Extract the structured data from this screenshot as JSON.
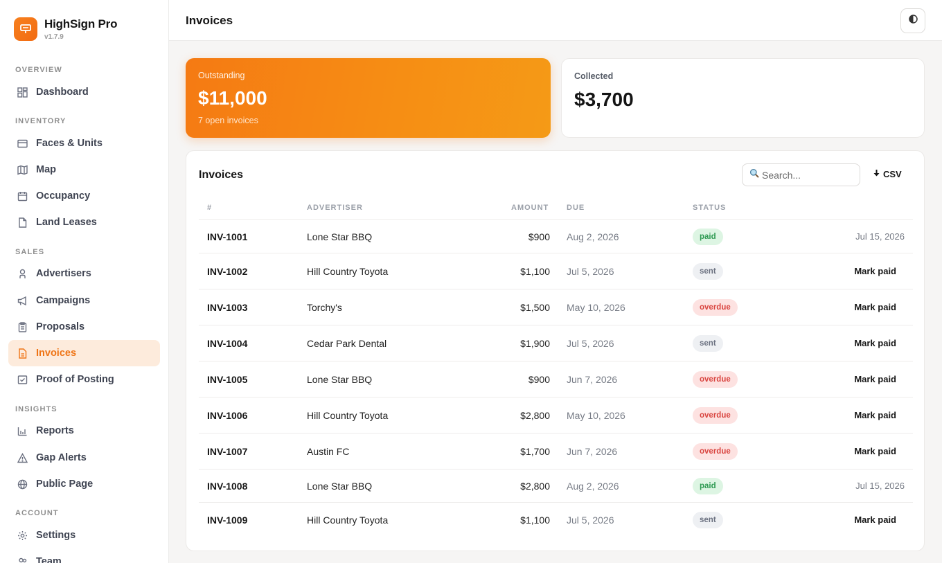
{
  "brand": {
    "name": "HighSign Pro",
    "version": "v1.7.9"
  },
  "nav": {
    "overview": "OVERVIEW",
    "dashboard": "Dashboard",
    "inventory": "INVENTORY",
    "faces_units": "Faces & Units",
    "map": "Map",
    "occupancy": "Occupancy",
    "land_leases": "Land Leases",
    "sales": "SALES",
    "advertisers": "Advertisers",
    "campaigns": "Campaigns",
    "proposals": "Proposals",
    "invoices": "Invoices",
    "proof_of_posting": "Proof of Posting",
    "insights": "INSIGHTS",
    "reports": "Reports",
    "gap_alerts": "Gap Alerts",
    "public_page": "Public Page",
    "account": "ACCOUNT",
    "settings": "Settings",
    "team": "Team"
  },
  "header": {
    "title": "Invoices",
    "theme_icon": "contrast-icon"
  },
  "stats": {
    "outstanding": {
      "label": "Outstanding",
      "value": "$11,000",
      "sub": "7 open invoices"
    },
    "collected": {
      "label": "Collected",
      "value": "$3,700"
    }
  },
  "panel": {
    "title": "Invoices",
    "search_placeholder": "Search...",
    "csv_label": "CSV",
    "columns": {
      "num": "#",
      "advertiser": "ADVERTISER",
      "amount": "AMOUNT",
      "due": "DUE",
      "status": "STATUS"
    }
  },
  "rows": [
    {
      "num": "INV-1001",
      "advertiser": "Lone Star BBQ",
      "amount": "$900",
      "due": "Aug 2, 2026",
      "status": "paid",
      "action": "Jul 15, 2026"
    },
    {
      "num": "INV-1002",
      "advertiser": "Hill Country Toyota",
      "amount": "$1,100",
      "due": "Jul 5, 2026",
      "status": "sent",
      "action": "Mark paid"
    },
    {
      "num": "INV-1003",
      "advertiser": "Torchy's",
      "amount": "$1,500",
      "due": "May 10, 2026",
      "status": "overdue",
      "action": "Mark paid"
    },
    {
      "num": "INV-1004",
      "advertiser": "Cedar Park Dental",
      "amount": "$1,900",
      "due": "Jul 5, 2026",
      "status": "sent",
      "action": "Mark paid"
    },
    {
      "num": "INV-1005",
      "advertiser": "Lone Star BBQ",
      "amount": "$900",
      "due": "Jun 7, 2026",
      "status": "overdue",
      "action": "Mark paid"
    },
    {
      "num": "INV-1006",
      "advertiser": "Hill Country Toyota",
      "amount": "$2,800",
      "due": "May 10, 2026",
      "status": "overdue",
      "action": "Mark paid"
    },
    {
      "num": "INV-1007",
      "advertiser": "Austin FC",
      "amount": "$1,700",
      "due": "Jun 7, 2026",
      "status": "overdue",
      "action": "Mark paid"
    },
    {
      "num": "INV-1008",
      "advertiser": "Lone Star BBQ",
      "amount": "$2,800",
      "due": "Aug 2, 2026",
      "status": "paid",
      "action": "Jul 15, 2026"
    },
    {
      "num": "INV-1009",
      "advertiser": "Hill Country Toyota",
      "amount": "$1,100",
      "due": "Jul 5, 2026",
      "status": "sent",
      "action": "Mark paid"
    }
  ],
  "colors": {
    "accent": "#f57a13",
    "active_bg": "#fdebdc",
    "paid": "#2e9a52",
    "overdue": "#d9443f"
  }
}
